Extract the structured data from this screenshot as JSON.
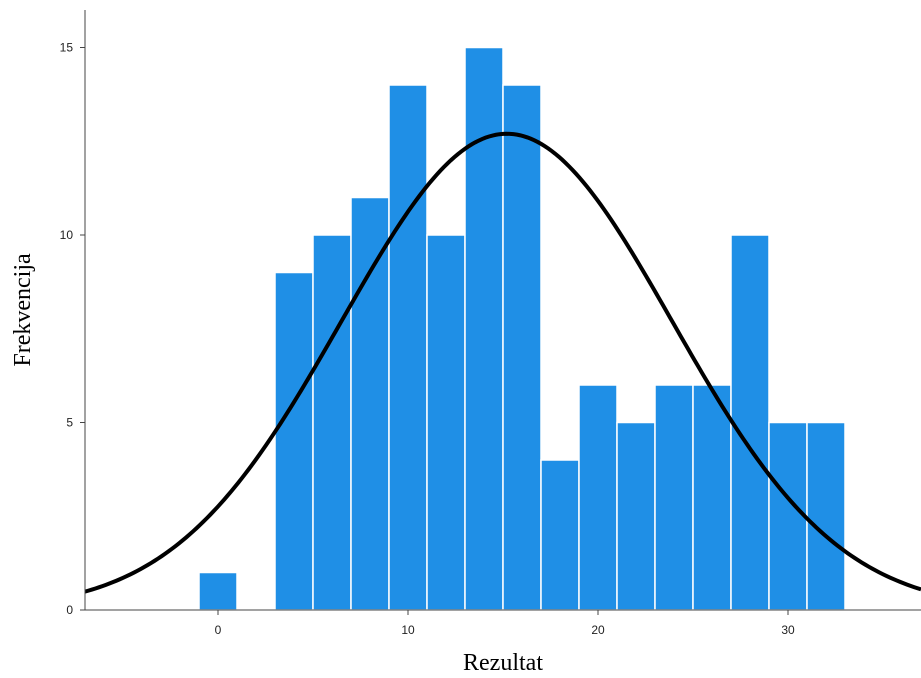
{
  "chart_data": {
    "type": "bar",
    "subtype": "histogram",
    "xlabel": "Rezultat",
    "ylabel": "Frekvencija",
    "xlim": [
      -7,
      37
    ],
    "ylim": [
      0,
      16
    ],
    "x_ticks": [
      "0",
      "10",
      "20",
      "30"
    ],
    "y_ticks": [
      "0",
      "5",
      "10",
      "15"
    ],
    "bin_width": 2,
    "bins": [
      {
        "start": -1,
        "end": 1,
        "value": 1
      },
      {
        "start": 3,
        "end": 5,
        "value": 9
      },
      {
        "start": 5,
        "end": 7,
        "value": 10
      },
      {
        "start": 7,
        "end": 9,
        "value": 11
      },
      {
        "start": 9,
        "end": 11,
        "value": 14
      },
      {
        "start": 11,
        "end": 13,
        "value": 10
      },
      {
        "start": 13,
        "end": 15,
        "value": 15
      },
      {
        "start": 15,
        "end": 17,
        "value": 14
      },
      {
        "start": 17,
        "end": 19,
        "value": 4
      },
      {
        "start": 19,
        "end": 21,
        "value": 6
      },
      {
        "start": 21,
        "end": 23,
        "value": 5
      },
      {
        "start": 23,
        "end": 25,
        "value": 6
      },
      {
        "start": 25,
        "end": 27,
        "value": 6
      },
      {
        "start": 27,
        "end": 29,
        "value": 10
      },
      {
        "start": 29,
        "end": 31,
        "value": 5
      },
      {
        "start": 31,
        "end": 33,
        "value": 5
      }
    ],
    "normal_curve": {
      "mean": 15.2,
      "sd": 8.7,
      "peak": 12.7
    },
    "grid": false,
    "legend": "none",
    "colors": {
      "bar": "#1f8fe6",
      "bar_edge": "#ffffff",
      "curve": "#000000",
      "axis": "#444444"
    }
  }
}
